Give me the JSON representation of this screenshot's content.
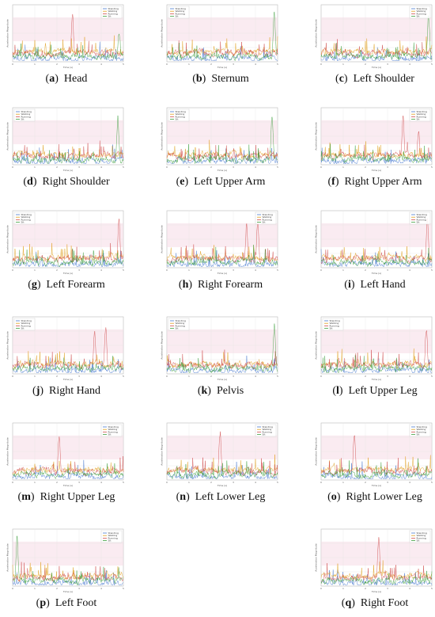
{
  "figure": {
    "colors": {
      "series_1": "#4a7bd0",
      "series_2": "#e0a020",
      "series_3": "#d05050",
      "series_4": "#40a040",
      "band": "#f6dbe6"
    },
    "legend_entries": [
      "Standing",
      "Walking",
      "Running",
      "Sit"
    ],
    "x_axis_title": "Time (s)",
    "y_axis_title": "Acceleration Magnitude"
  },
  "chart_data": [
    {
      "type": "line",
      "letter": "a",
      "label": "Head",
      "xlim": [
        0,
        5
      ],
      "legend": "top-right",
      "peaks": [
        {
          "series": 3,
          "x": 2.7,
          "y": 0.95
        },
        {
          "series": 4,
          "x": 4.8,
          "y": 0.55
        }
      ]
    },
    {
      "type": "line",
      "letter": "b",
      "label": "Sternum",
      "xlim": [
        0,
        5
      ],
      "legend": "top-left",
      "peaks": [
        {
          "series": 4,
          "x": 4.85,
          "y": 0.95
        }
      ]
    },
    {
      "type": "line",
      "letter": "c",
      "label": "Left Shoulder",
      "xlim": [
        0,
        5
      ],
      "legend": "top-right",
      "peaks": [
        {
          "series": 4,
          "x": 4.85,
          "y": 0.9
        }
      ]
    },
    {
      "type": "line",
      "letter": "d",
      "label": "Right Shoulder",
      "xlim": [
        0,
        5
      ],
      "legend": "top-left",
      "peaks": [
        {
          "series": 4,
          "x": 4.75,
          "y": 0.9
        }
      ]
    },
    {
      "type": "line",
      "letter": "e",
      "label": "Left Upper Arm",
      "xlim": [
        0,
        5
      ],
      "legend": "top-left",
      "peaks": [
        {
          "series": 4,
          "x": 4.75,
          "y": 0.95
        }
      ]
    },
    {
      "type": "line",
      "letter": "f",
      "label": "Right Upper Arm",
      "xlim": [
        0,
        5
      ],
      "legend": "top-right",
      "peaks": [
        {
          "series": 3,
          "x": 3.7,
          "y": 0.95
        },
        {
          "series": 3,
          "x": 4.4,
          "y": 0.65
        }
      ]
    },
    {
      "type": "line",
      "letter": "g",
      "label": "Left Forearm",
      "xlim": [
        0,
        5
      ],
      "legend": "top-left",
      "peaks": [
        {
          "series": 3,
          "x": 4.8,
          "y": 0.95
        }
      ]
    },
    {
      "type": "line",
      "letter": "h",
      "label": "Right Forearm",
      "xlim": [
        0,
        5
      ],
      "legend": "top-right",
      "peaks": [
        {
          "series": 3,
          "x": 3.6,
          "y": 0.85
        },
        {
          "series": 3,
          "x": 4.1,
          "y": 0.95
        }
      ]
    },
    {
      "type": "line",
      "letter": "i",
      "label": "Left Hand",
      "xlim": [
        0,
        5
      ],
      "legend": "top-right",
      "peaks": [
        {
          "series": 3,
          "x": 4.8,
          "y": 0.95
        }
      ]
    },
    {
      "type": "line",
      "letter": "j",
      "label": "Right Hand",
      "xlim": [
        0,
        5
      ],
      "legend": "top-left",
      "peaks": [
        {
          "series": 3,
          "x": 3.7,
          "y": 0.8
        },
        {
          "series": 3,
          "x": 4.2,
          "y": 0.95
        }
      ]
    },
    {
      "type": "line",
      "letter": "k",
      "label": "Pelvis",
      "xlim": [
        0,
        5
      ],
      "legend": "top-left",
      "peaks": [
        {
          "series": 4,
          "x": 4.85,
          "y": 0.95
        }
      ]
    },
    {
      "type": "line",
      "letter": "l",
      "label": "Left Upper Leg",
      "xlim": [
        0,
        5
      ],
      "legend": "top-left",
      "peaks": [
        {
          "series": 3,
          "x": 4.75,
          "y": 0.9
        }
      ]
    },
    {
      "type": "line",
      "letter": "m",
      "label": "Right Upper Leg",
      "xlim": [
        0,
        5
      ],
      "legend": "top-right",
      "peaks": [
        {
          "series": 3,
          "x": 2.1,
          "y": 0.9
        }
      ]
    },
    {
      "type": "line",
      "letter": "n",
      "label": "Left Lower Leg",
      "xlim": [
        0,
        5
      ],
      "legend": "top-right",
      "peaks": [
        {
          "series": 3,
          "x": 2.4,
          "y": 0.95
        }
      ]
    },
    {
      "type": "line",
      "letter": "o",
      "label": "Right Lower Leg",
      "xlim": [
        0,
        5
      ],
      "legend": "top-right",
      "peaks": [
        {
          "series": 3,
          "x": 1.5,
          "y": 0.95
        }
      ]
    },
    {
      "type": "line",
      "letter": "p",
      "label": "Left Foot",
      "xlim": [
        0,
        5
      ],
      "legend": "top-right",
      "peaks": [
        {
          "series": 4,
          "x": 0.2,
          "y": 0.95
        }
      ]
    },
    {
      "type": "line",
      "letter": "q",
      "label": "Right Foot",
      "xlim": [
        0,
        5
      ],
      "legend": "top-right",
      "peaks": [
        {
          "series": 3,
          "x": 2.6,
          "y": 0.95
        }
      ]
    }
  ]
}
